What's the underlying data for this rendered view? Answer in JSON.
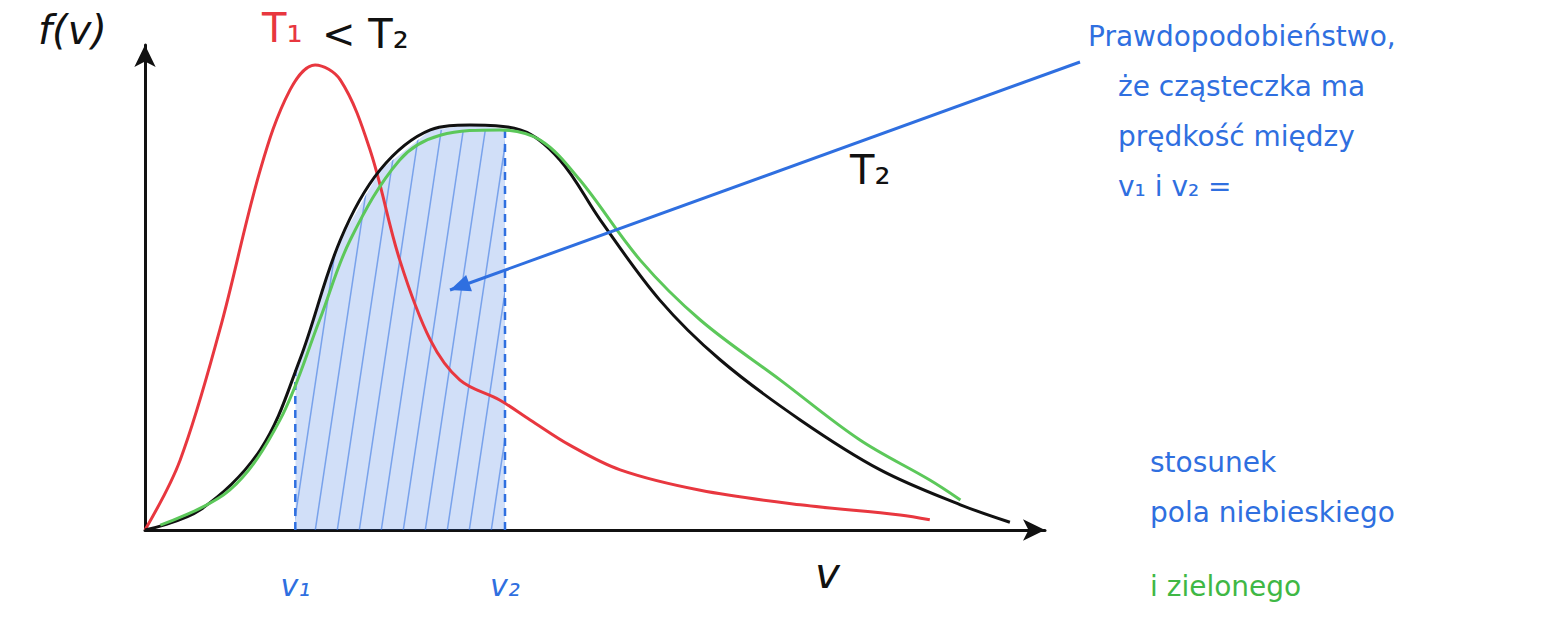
{
  "chart_data": {
    "type": "line",
    "x_label": "v",
    "y_label": "f(v)",
    "xlim": [
      0,
      10
    ],
    "ylim": [
      0,
      10
    ],
    "xticks": [
      {
        "value": 1.67,
        "label": "v₁"
      },
      {
        "value": 4.0,
        "label": "v₂"
      }
    ],
    "yticks": [],
    "tick_labels": "x",
    "grid": false,
    "series": [
      {
        "color": "#e8373f",
        "x": [
          0,
          0.39,
          0.83,
          1.28,
          1.61,
          1.89,
          2.17,
          2.5,
          2.83,
          3.17,
          3.5,
          3.94,
          4.28,
          4.72,
          5.28,
          6.17,
          7.28,
          8.39,
          8.72
        ],
        "values": [
          0,
          1.44,
          4.12,
          7.42,
          9.07,
          9.59,
          9.28,
          7.84,
          5.57,
          3.92,
          3.09,
          2.68,
          2.27,
          1.75,
          1.24,
          0.82,
          0.52,
          0.31,
          0.21
        ]
      },
      {
        "color": "#111111",
        "x": [
          0,
          0.61,
          1.28,
          1.72,
          2.17,
          2.61,
          3.17,
          3.61,
          4.17,
          4.61,
          5.06,
          5.72,
          6.39,
          7.28,
          8.17,
          9.06,
          9.61
        ],
        "values": [
          0,
          0.41,
          1.65,
          3.51,
          5.98,
          7.42,
          8.25,
          8.35,
          8.25,
          7.63,
          6.39,
          4.74,
          3.51,
          2.27,
          1.24,
          0.52,
          0.16
        ]
      },
      {
        "color": "#5cc85a",
        "x": [
          0.17,
          0.94,
          1.5,
          1.94,
          2.28,
          2.83,
          3.28,
          3.94,
          4.39,
          4.83,
          5.5,
          6.17,
          7.06,
          7.94,
          8.72,
          9.06
        ],
        "values": [
          0.1,
          0.82,
          2.27,
          4.33,
          5.98,
          7.63,
          8.14,
          8.25,
          8.04,
          7.22,
          5.57,
          4.33,
          3.09,
          1.86,
          1.03,
          0.62
        ]
      }
    ],
    "annotations": [
      {
        "text": "T₁",
        "color": "#e8373f"
      },
      {
        "text": "< T₂",
        "color": "#111111"
      },
      {
        "text": "T₂",
        "color": "#111111"
      },
      {
        "lines": [
          "Prawdopodobieństwo,",
          "że cząsteczka ma",
          "prędkość między",
          "v₁ i v₂ ="
        ],
        "color": "#2f6fe0"
      },
      {
        "lines": [
          "stosunek",
          "pola niebieskiego"
        ],
        "color": "#2f6fe0"
      },
      {
        "lines": [
          "i zielonego"
        ],
        "color": "#3fb845"
      }
    ]
  }
}
